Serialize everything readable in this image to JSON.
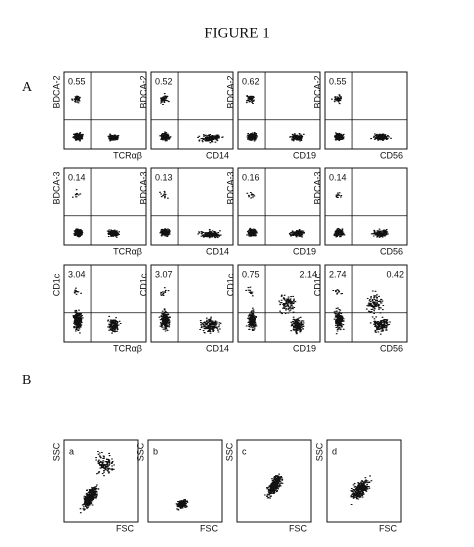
{
  "title": "FIGURE 1",
  "panel_a": {
    "label": "A",
    "rows": [
      {
        "y_label": "BDCA-2",
        "plots": [
          {
            "x_label": "TCRαβ",
            "upper_left": "0.55"
          },
          {
            "x_label": "CD14",
            "upper_left": "0.52"
          },
          {
            "x_label": "CD19",
            "upper_left": "0.62"
          },
          {
            "x_label": "CD56",
            "upper_left": "0.55"
          }
        ]
      },
      {
        "y_label": "BDCA-3",
        "plots": [
          {
            "x_label": "TCRαβ",
            "upper_left": "0.14"
          },
          {
            "x_label": "CD14",
            "upper_left": "0.13"
          },
          {
            "x_label": "CD19",
            "upper_left": "0.16"
          },
          {
            "x_label": "CD56",
            "upper_left": "0.14"
          }
        ]
      },
      {
        "y_label": "CD1c",
        "plots": [
          {
            "x_label": "TCRαβ",
            "upper_left": "3.04"
          },
          {
            "x_label": "CD14",
            "upper_left": "3.07"
          },
          {
            "x_label": "CD19",
            "upper_left": "0.75",
            "upper_right": "2.14"
          },
          {
            "x_label": "CD56",
            "upper_left": "2.74",
            "upper_right": "0.42"
          }
        ]
      }
    ]
  },
  "panel_b": {
    "label": "B",
    "plots": [
      {
        "label": "a",
        "y_label": "SSC",
        "x_label": "FSC"
      },
      {
        "label": "b",
        "y_label": "SSC",
        "x_label": "FSC"
      },
      {
        "label": "c",
        "y_label": "SSC",
        "x_label": "FSC"
      },
      {
        "label": "d",
        "y_label": "SSC",
        "x_label": "FSC"
      }
    ]
  }
}
